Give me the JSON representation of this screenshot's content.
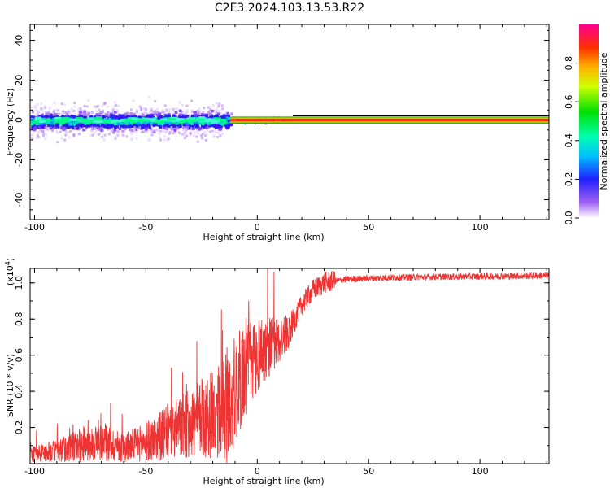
{
  "title": "C2E3.2024.103.13.53.R22",
  "chart_data": [
    {
      "type": "heatmap",
      "xlabel": "Height of straight line (km)",
      "ylabel": "Frequency (Hz)",
      "xlim": [
        -102,
        131
      ],
      "ylim": [
        -50,
        48
      ],
      "x_ticks": [
        -100,
        -50,
        0,
        50,
        100
      ],
      "y_ticks": [
        -40,
        -20,
        0,
        20,
        40
      ],
      "colorbar": {
        "label": "Normalized spectral amplitude",
        "range": [
          0,
          1
        ],
        "ticks": [
          "0.0",
          "0.2",
          "0.4",
          "0.6",
          "0.8"
        ],
        "placement": "right"
      },
      "band": {
        "noisy_region_km": [
          -102,
          -15
        ],
        "transition_region_km": [
          -15,
          16
        ],
        "steady_region_km": [
          16,
          131
        ],
        "center_freq_hz": 0,
        "noisy_spread_hz": 12
      },
      "steady_line_color_stops": [
        "#00c800",
        "#ffd000",
        "#ff3000",
        "#c00000",
        "#ff3000",
        "#ffd000",
        "#00c800"
      ]
    },
    {
      "type": "line",
      "xlabel": "Height of straight line (km)",
      "ylabel": "SNR (10 * v/v)",
      "yscale_label": "(x10",
      "yscale_exp": "4",
      "yscale_close": ")",
      "xlim": [
        -102,
        131
      ],
      "ylim": [
        0.0,
        1.08
      ],
      "x_ticks": [
        -100,
        -50,
        0,
        50,
        100
      ],
      "y_ticks": [
        "0.2",
        "0.4",
        "0.6",
        "0.8",
        "1.0"
      ],
      "series": [
        {
          "color": "#ee3333",
          "envelope": [
            [
              -102,
              0.05
            ],
            [
              -90,
              0.07
            ],
            [
              -80,
              0.1
            ],
            [
              -70,
              0.12
            ],
            [
              -60,
              0.09
            ],
            [
              -50,
              0.12
            ],
            [
              -40,
              0.17
            ],
            [
              -30,
              0.22
            ],
            [
              -20,
              0.27
            ],
            [
              -15,
              0.3
            ],
            [
              -10,
              0.4
            ],
            [
              -5,
              0.52
            ],
            [
              0,
              0.6
            ],
            [
              5,
              0.65
            ],
            [
              10,
              0.68
            ],
            [
              15,
              0.75
            ],
            [
              20,
              0.88
            ],
            [
              25,
              0.96
            ],
            [
              30,
              1.0
            ],
            [
              40,
              1.02
            ],
            [
              60,
              1.03
            ],
            [
              131,
              1.04
            ]
          ]
        }
      ]
    }
  ]
}
